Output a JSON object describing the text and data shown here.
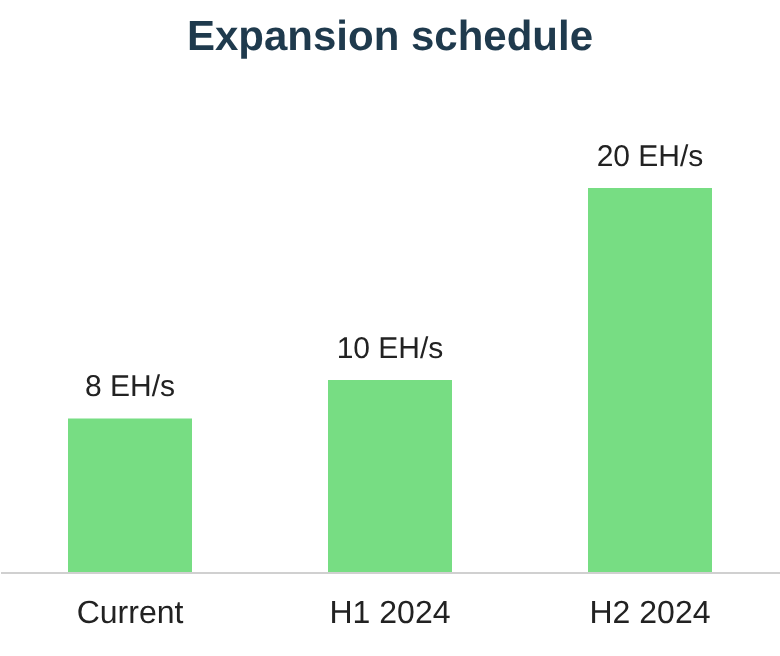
{
  "chart_data": {
    "type": "bar",
    "title": "Expansion schedule",
    "categories": [
      "Current",
      "H1 2024",
      "H2 2024"
    ],
    "values": [
      8,
      10,
      20
    ],
    "value_labels": [
      "8 EH/s",
      "10 EH/s",
      "20 EH/s"
    ],
    "color": "#77dd83",
    "grid": false,
    "tick_labels": "x"
  }
}
